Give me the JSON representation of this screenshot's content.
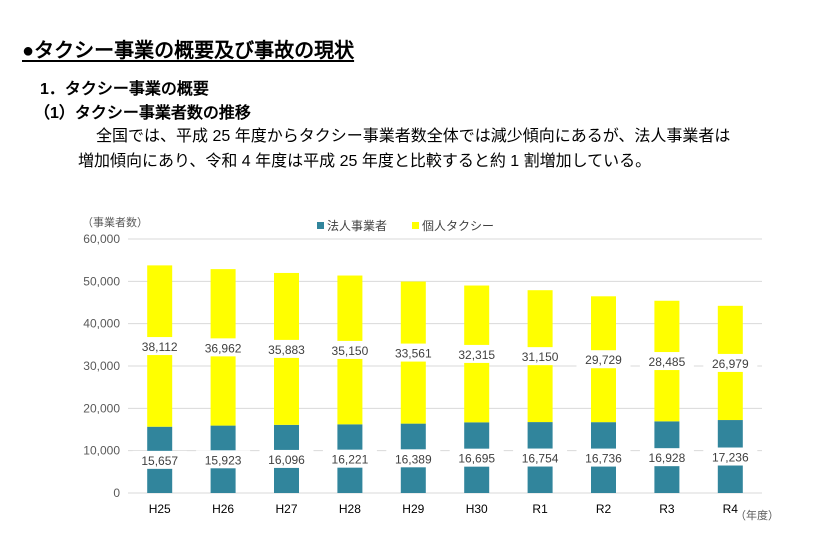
{
  "heading": "●タクシー事業の概要及び事故の現状",
  "section": "1．タクシー事業の概要",
  "subsection": "（1）タクシー事業者数の推移",
  "paragraph": {
    "line1": "全国では、平成 25 年度からタクシー事業者数全体では減少傾向にあるが、法人事業者は",
    "line2": "増加傾向にあり、令和 4 年度は平成 25 年度と比較すると約 1 割増加している。"
  },
  "chart_data": {
    "type": "bar",
    "stacked": true,
    "ylabel": "（事業者数）",
    "xlabel": "（年度）",
    "categories": [
      "H25",
      "H26",
      "H27",
      "H28",
      "H29",
      "H30",
      "R1",
      "R2",
      "R3",
      "R4"
    ],
    "ylim": [
      0,
      60000
    ],
    "yticks": [
      0,
      10000,
      20000,
      30000,
      40000,
      50000,
      60000
    ],
    "ytick_labels": [
      "0",
      "10,000",
      "20,000",
      "30,000",
      "40,000",
      "50,000",
      "60,000"
    ],
    "grid": true,
    "legend_position": "top",
    "series": [
      {
        "name": "法人事業者",
        "color": "#31859C",
        "values": [
          15657,
          15923,
          16096,
          16221,
          16389,
          16695,
          16754,
          16736,
          16928,
          17236
        ]
      },
      {
        "name": "個人タクシー",
        "color": "#FFFF00",
        "values": [
          38112,
          36962,
          35883,
          35150,
          33561,
          32315,
          31150,
          29729,
          28485,
          26979
        ]
      }
    ]
  }
}
